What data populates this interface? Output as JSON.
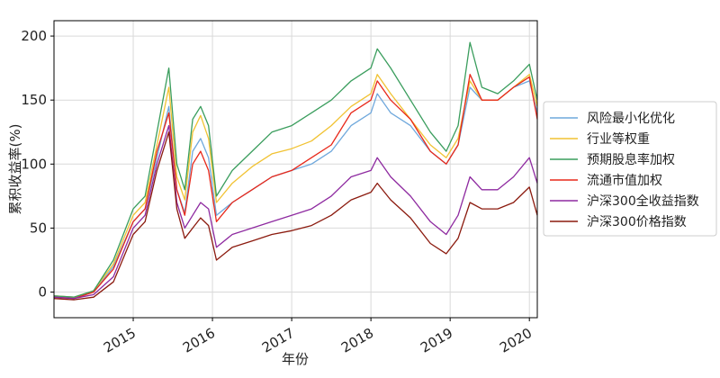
{
  "chart_data": {
    "type": "line",
    "xlabel": "年份",
    "ylabel": "累积收益率(%)",
    "x_ticks": [
      "2015",
      "2016",
      "2017",
      "2018",
      "2019",
      "2020"
    ],
    "y_ticks": [
      0,
      50,
      100,
      150,
      200
    ],
    "xlim": [
      2014.0,
      2020.1
    ],
    "ylim": [
      -20,
      212
    ],
    "grid": true,
    "legend_position": "right",
    "x": [
      2014.0,
      2014.25,
      2014.5,
      2014.75,
      2015.0,
      2015.15,
      2015.3,
      2015.45,
      2015.55,
      2015.65,
      2015.75,
      2015.85,
      2015.95,
      2016.05,
      2016.25,
      2016.5,
      2016.75,
      2017.0,
      2017.25,
      2017.5,
      2017.75,
      2018.0,
      2018.08,
      2018.25,
      2018.5,
      2018.75,
      2018.95,
      2019.1,
      2019.25,
      2019.4,
      2019.6,
      2019.8,
      2020.0,
      2020.1
    ],
    "series": [
      {
        "name": "风险最小化优化",
        "color": "#6fa8dc",
        "values": [
          -3,
          -4,
          0,
          20,
          55,
          65,
          105,
          145,
          80,
          62,
          110,
          120,
          105,
          60,
          70,
          80,
          90,
          95,
          100,
          110,
          130,
          140,
          155,
          140,
          130,
          110,
          100,
          115,
          160,
          150,
          150,
          160,
          165,
          140
        ]
      },
      {
        "name": "行业等权重",
        "color": "#f1c232",
        "values": [
          -3,
          -4,
          1,
          22,
          60,
          70,
          115,
          160,
          90,
          72,
          125,
          138,
          120,
          70,
          85,
          98,
          108,
          112,
          118,
          130,
          145,
          155,
          170,
          155,
          135,
          115,
          105,
          120,
          165,
          150,
          150,
          160,
          170,
          145
        ]
      },
      {
        "name": "预期股息率加权",
        "color": "#3a9d5d",
        "values": [
          -3,
          -4,
          1,
          25,
          65,
          75,
          125,
          175,
          100,
          80,
          135,
          145,
          130,
          75,
          95,
          110,
          125,
          130,
          140,
          150,
          165,
          175,
          190,
          175,
          150,
          125,
          110,
          130,
          195,
          160,
          155,
          165,
          178,
          150
        ]
      },
      {
        "name": "流通市值加权",
        "color": "#e8281a",
        "values": [
          -4,
          -5,
          0,
          18,
          55,
          65,
          110,
          140,
          80,
          60,
          100,
          110,
          95,
          55,
          70,
          80,
          90,
          95,
          105,
          115,
          140,
          150,
          165,
          150,
          135,
          110,
          100,
          115,
          170,
          150,
          150,
          160,
          168,
          135
        ]
      },
      {
        "name": "沪深300全收益指数",
        "color": "#8e2aa0",
        "values": [
          -4,
          -5,
          -2,
          12,
          50,
          60,
          100,
          130,
          70,
          50,
          60,
          70,
          65,
          35,
          45,
          50,
          55,
          60,
          65,
          75,
          90,
          95,
          105,
          90,
          75,
          55,
          45,
          60,
          90,
          80,
          80,
          90,
          105,
          85
        ]
      },
      {
        "name": "沪深300价格指数",
        "color": "#8b1a0e",
        "values": [
          -5,
          -6,
          -4,
          8,
          45,
          55,
          95,
          125,
          65,
          42,
          50,
          58,
          52,
          25,
          35,
          40,
          45,
          48,
          52,
          60,
          72,
          78,
          85,
          72,
          58,
          38,
          30,
          42,
          70,
          65,
          65,
          70,
          82,
          60
        ]
      }
    ]
  }
}
